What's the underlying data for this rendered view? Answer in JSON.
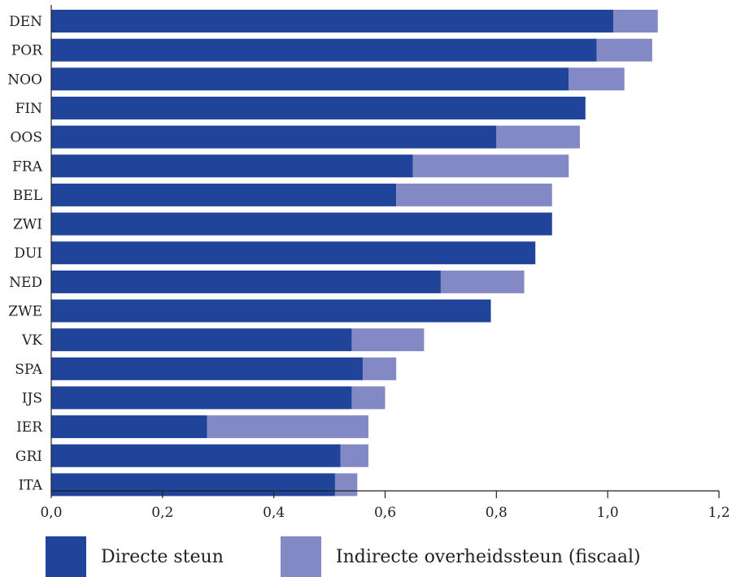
{
  "chart_data": {
    "type": "bar",
    "orientation": "horizontal",
    "stacked": true,
    "categories": [
      "DEN",
      "POR",
      "NOO",
      "FIN",
      "OOS",
      "FRA",
      "BEL",
      "ZWI",
      "DUI",
      "NED",
      "ZWE",
      "VK",
      "SPA",
      "IJS",
      "IER",
      "GRI",
      "ITA"
    ],
    "series": [
      {
        "name": "Directe steun",
        "color": "#1f449a",
        "values": [
          1.01,
          0.98,
          0.93,
          0.96,
          0.8,
          0.65,
          0.62,
          0.9,
          0.87,
          0.7,
          0.79,
          0.54,
          0.56,
          0.54,
          0.28,
          0.52,
          0.51
        ]
      },
      {
        "name": "Indirecte overheidssteun (fiscaal)",
        "color": "#8389c4",
        "values": [
          0.08,
          0.1,
          0.1,
          0.0,
          0.15,
          0.28,
          0.28,
          0.0,
          0.0,
          0.15,
          0.0,
          0.13,
          0.06,
          0.06,
          0.29,
          0.05,
          0.04
        ]
      }
    ],
    "xlim": [
      0,
      1.2
    ],
    "x_ticks": [
      "0,0",
      "0,2",
      "0,4",
      "0,6",
      "0,8",
      "1,0",
      "1,2"
    ],
    "x_tick_values": [
      0,
      0.2,
      0.4,
      0.6,
      0.8,
      1.0,
      1.2
    ],
    "grid": false,
    "legend_position": "bottom"
  }
}
